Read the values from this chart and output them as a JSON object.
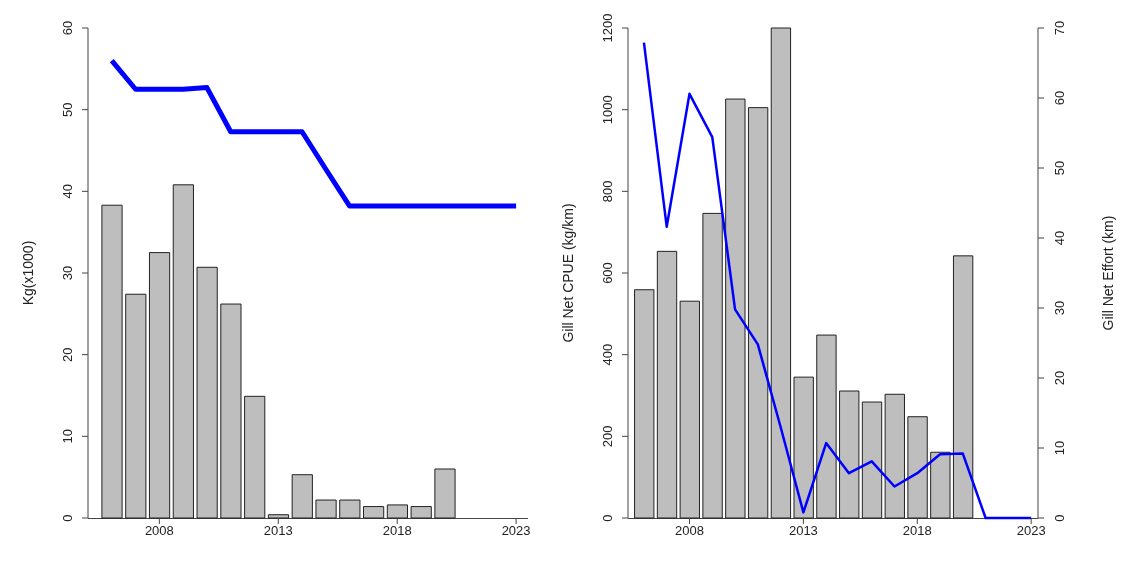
{
  "chart_data": [
    {
      "type": "bar",
      "ylabel": "Kg(x1000)",
      "x": [
        2006,
        2007,
        2008,
        2009,
        2010,
        2011,
        2012,
        2013,
        2014,
        2015,
        2016,
        2017,
        2018,
        2019,
        2020,
        2021,
        2022,
        2023
      ],
      "series": [
        {
          "color": "#bebebe",
          "values": [
            38.3,
            27.4,
            32.5,
            40.8,
            30.7,
            26.2,
            14.9,
            0.4,
            5.3,
            2.2,
            2.2,
            1.4,
            1.6,
            1.4,
            6.0,
            null,
            null,
            null
          ]
        },
        {
          "type": "line",
          "color": "#0000ff",
          "values": [
            56,
            52.5,
            52.5,
            52.5,
            52.7,
            47.3,
            47.3,
            47.3,
            47.3,
            42.7,
            38.2,
            38.2,
            38.2,
            38.2,
            38.2,
            38.2,
            38.2,
            38.2
          ]
        }
      ],
      "xlim": [
        2005,
        2023.5
      ],
      "xticks": [
        2008,
        2013,
        2018,
        2023
      ],
      "ylim": [
        0,
        60
      ],
      "yticks": [
        0,
        10,
        20,
        30,
        40,
        50,
        60
      ],
      "grid": false,
      "legend": false
    },
    {
      "type": "bar",
      "ylabel": "Gill Net CPUE (kg/km)",
      "y2label": "Gill Net Effort (km)",
      "x": [
        2006,
        2007,
        2008,
        2009,
        2010,
        2011,
        2012,
        2013,
        2014,
        2015,
        2016,
        2017,
        2018,
        2019,
        2020,
        2021,
        2022,
        2023
      ],
      "series": [
        {
          "color": "#bebebe",
          "values": [
            559,
            653,
            531,
            746,
            1026,
            1005,
            1200,
            345,
            448,
            311,
            284,
            303,
            248,
            161,
            642,
            null,
            null,
            null
          ]
        },
        {
          "type": "line",
          "axis": "y2",
          "color": "#0000ff",
          "values": [
            67.9,
            41.6,
            60.6,
            54.4,
            29.8,
            24.8,
            13,
            0.8,
            10.7,
            6.4,
            8.1,
            4.5,
            6.4,
            9.1,
            9.2,
            0,
            0,
            0
          ]
        }
      ],
      "xlim": [
        2005.3,
        2023.3
      ],
      "xticks": [
        2008,
        2013,
        2018,
        2023
      ],
      "ylim": [
        0,
        1200
      ],
      "yticks": [
        0,
        200,
        400,
        600,
        800,
        1000,
        1200
      ],
      "y2lim": [
        0,
        70
      ],
      "y2ticks": [
        0,
        10,
        20,
        30,
        40,
        50,
        60,
        70
      ],
      "grid": false,
      "legend": false
    }
  ]
}
